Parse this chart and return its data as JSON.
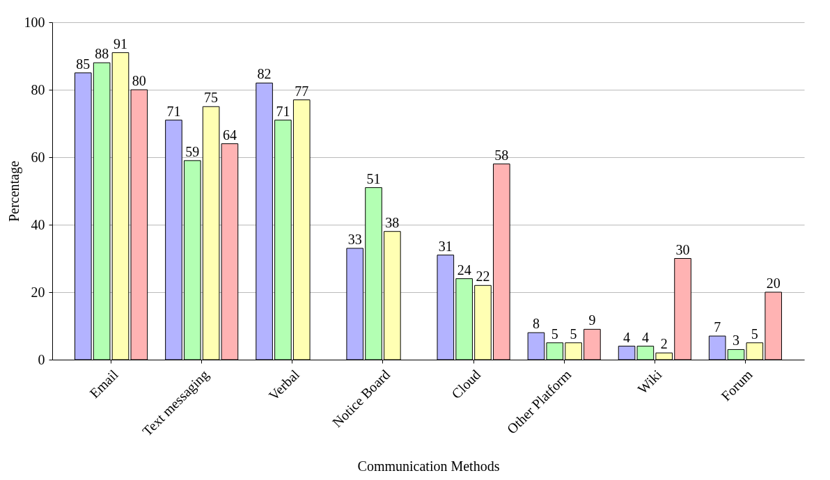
{
  "chart_data": {
    "type": "bar",
    "xlabel": "Communication Methods",
    "ylabel": "Percentage",
    "categories": [
      "Email",
      "Text messaging",
      "Verbal",
      "Notice Board",
      "Cloud",
      "Other Platform",
      "Wiki",
      "Forum"
    ],
    "series": [
      {
        "color": "#b3b3ff",
        "values": [
          85,
          71,
          82,
          33,
          31,
          8,
          4,
          7
        ]
      },
      {
        "color": "#b3ffb3",
        "values": [
          88,
          59,
          71,
          51,
          24,
          5,
          4,
          3
        ]
      },
      {
        "color": "#ffffb3",
        "values": [
          91,
          75,
          77,
          38,
          22,
          5,
          2,
          5
        ]
      },
      {
        "color": "#ffb3b3",
        "values": [
          80,
          64,
          null,
          null,
          58,
          9,
          30,
          20
        ]
      }
    ],
    "ylim": [
      0,
      100
    ],
    "yticks": [
      0,
      20,
      40,
      60,
      80,
      100
    ],
    "grid": "y",
    "data_labels": true
  }
}
